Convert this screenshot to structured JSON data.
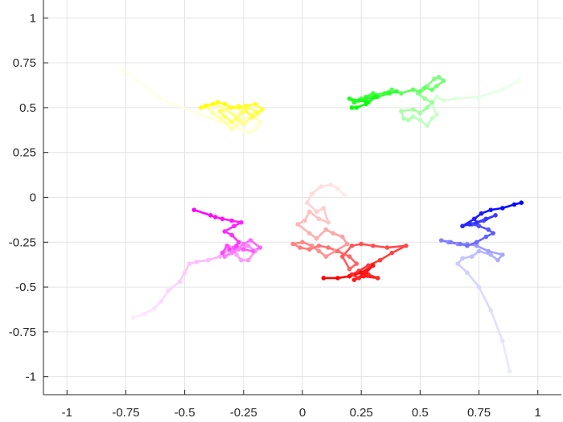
{
  "chart_data": {
    "type": "line",
    "title": "",
    "xlabel": "",
    "ylabel": "",
    "xlim": [
      -1.1,
      1.1
    ],
    "ylim": [
      -1.1,
      1.1
    ],
    "grid": true,
    "box": false,
    "xticks": [
      -1,
      -0.75,
      -0.5,
      -0.25,
      0,
      0.25,
      0.5,
      0.75,
      1
    ],
    "xtick_labels": [
      "-1",
      "-0.75",
      "-0.5",
      "-0.25",
      "0",
      "0.25",
      "0.5",
      "0.75",
      "1"
    ],
    "yticks": [
      -1,
      -0.75,
      -0.5,
      -0.25,
      0,
      0.25,
      0.5,
      0.75,
      1
    ],
    "ytick_labels": [
      "-1",
      "-0.75",
      "-0.5",
      "-0.25",
      "0",
      "0.25",
      "0.5",
      "0.75",
      "1"
    ],
    "series": [
      {
        "color": "#ffff00",
        "x": [
          -0.77,
          -0.6,
          -0.45,
          -0.35,
          -0.3,
          -0.25,
          -0.22,
          -0.2,
          -0.18,
          -0.2,
          -0.25,
          -0.28,
          -0.3,
          -0.32,
          -0.35,
          -0.38,
          -0.4,
          -0.37,
          -0.33,
          -0.29,
          -0.27,
          -0.25,
          -0.22,
          -0.2,
          -0.23,
          -0.26,
          -0.28,
          -0.3,
          -0.33,
          -0.35,
          -0.3,
          -0.27,
          -0.24,
          -0.21,
          -0.19,
          -0.17,
          -0.2,
          -0.24,
          -0.27,
          -0.3,
          -0.33,
          -0.36,
          -0.38,
          -0.41,
          -0.43
        ],
        "y": [
          0.72,
          0.55,
          0.47,
          0.42,
          0.4,
          0.37,
          0.36,
          0.38,
          0.42,
          0.45,
          0.44,
          0.4,
          0.38,
          0.41,
          0.44,
          0.47,
          0.5,
          0.52,
          0.49,
          0.46,
          0.43,
          0.41,
          0.44,
          0.48,
          0.5,
          0.47,
          0.44,
          0.42,
          0.45,
          0.48,
          0.5,
          0.51,
          0.48,
          0.45,
          0.47,
          0.49,
          0.52,
          0.51,
          0.5,
          0.5,
          0.52,
          0.53,
          0.52,
          0.51,
          0.5
        ]
      },
      {
        "color": "#00ff00",
        "x": [
          0.92,
          0.85,
          0.75,
          0.65,
          0.6,
          0.57,
          0.55,
          0.57,
          0.55,
          0.53,
          0.5,
          0.47,
          0.45,
          0.43,
          0.42,
          0.47,
          0.5,
          0.53,
          0.55,
          0.52,
          0.49,
          0.51,
          0.53,
          0.56,
          0.58,
          0.6,
          0.57,
          0.55,
          0.52,
          0.5,
          0.47,
          0.42,
          0.38,
          0.33,
          0.3,
          0.27,
          0.25,
          0.3,
          0.35,
          0.4,
          0.37,
          0.32,
          0.27,
          0.22,
          0.2,
          0.24,
          0.28,
          0.31,
          0.27,
          0.23,
          0.21
        ],
        "y": [
          0.65,
          0.6,
          0.56,
          0.55,
          0.54,
          0.56,
          0.52,
          0.46,
          0.44,
          0.4,
          0.43,
          0.45,
          0.43,
          0.44,
          0.48,
          0.49,
          0.47,
          0.5,
          0.53,
          0.55,
          0.58,
          0.6,
          0.62,
          0.66,
          0.67,
          0.65,
          0.62,
          0.6,
          0.61,
          0.59,
          0.6,
          0.58,
          0.6,
          0.57,
          0.58,
          0.56,
          0.55,
          0.57,
          0.58,
          0.59,
          0.58,
          0.56,
          0.55,
          0.53,
          0.55,
          0.54,
          0.53,
          0.56,
          0.52,
          0.5,
          0.5
        ]
      },
      {
        "color": "#ff0000",
        "x": [
          0.18,
          0.15,
          0.12,
          0.08,
          0.04,
          0.02,
          0.06,
          0.09,
          0.11,
          0.07,
          0.03,
          0.01,
          -0.02,
          0.03,
          0.06,
          0.1,
          0.13,
          0.17,
          0.19,
          0.14,
          0.1,
          0.07,
          0.04,
          0.0,
          -0.04,
          -0.01,
          0.03,
          0.07,
          0.11,
          0.15,
          0.2,
          0.23,
          0.2,
          0.17,
          0.21,
          0.25,
          0.3,
          0.36,
          0.44,
          0.38,
          0.33,
          0.28,
          0.24,
          0.21,
          0.24,
          0.28,
          0.32,
          0.26,
          0.22,
          0.27,
          0.3,
          0.25,
          0.2,
          0.15,
          0.09
        ],
        "y": [
          0.01,
          0.05,
          0.07,
          0.06,
          0.02,
          -0.03,
          -0.08,
          -0.06,
          -0.14,
          -0.12,
          -0.08,
          -0.13,
          -0.15,
          -0.2,
          -0.23,
          -0.18,
          -0.2,
          -0.22,
          -0.26,
          -0.3,
          -0.33,
          -0.3,
          -0.27,
          -0.25,
          -0.26,
          -0.28,
          -0.29,
          -0.27,
          -0.28,
          -0.3,
          -0.33,
          -0.37,
          -0.4,
          -0.33,
          -0.27,
          -0.26,
          -0.27,
          -0.28,
          -0.27,
          -0.31,
          -0.35,
          -0.38,
          -0.41,
          -0.43,
          -0.45,
          -0.43,
          -0.45,
          -0.44,
          -0.46,
          -0.42,
          -0.38,
          -0.42,
          -0.44,
          -0.45,
          -0.45
        ]
      },
      {
        "color": "#ff00ff",
        "x": [
          -0.72,
          -0.67,
          -0.63,
          -0.6,
          -0.57,
          -0.52,
          -0.5,
          -0.48,
          -0.45,
          -0.4,
          -0.35,
          -0.32,
          -0.3,
          -0.28,
          -0.26,
          -0.23,
          -0.2,
          -0.23,
          -0.27,
          -0.3,
          -0.33,
          -0.29,
          -0.25,
          -0.22,
          -0.18,
          -0.21,
          -0.25,
          -0.29,
          -0.32,
          -0.34,
          -0.31,
          -0.28,
          -0.27,
          -0.3,
          -0.33,
          -0.29,
          -0.26,
          -0.3,
          -0.34,
          -0.37,
          -0.39,
          -0.46
        ],
        "y": [
          -0.67,
          -0.65,
          -0.62,
          -0.58,
          -0.52,
          -0.47,
          -0.42,
          -0.37,
          -0.36,
          -0.35,
          -0.33,
          -0.3,
          -0.28,
          -0.32,
          -0.35,
          -0.35,
          -0.3,
          -0.27,
          -0.29,
          -0.31,
          -0.33,
          -0.3,
          -0.26,
          -0.24,
          -0.28,
          -0.3,
          -0.29,
          -0.28,
          -0.27,
          -0.31,
          -0.29,
          -0.27,
          -0.25,
          -0.21,
          -0.19,
          -0.16,
          -0.14,
          -0.13,
          -0.12,
          -0.11,
          -0.1,
          -0.07
        ]
      },
      {
        "color": "#0000ff",
        "x": [
          0.88,
          0.85,
          0.8,
          0.75,
          0.7,
          0.66,
          0.68,
          0.72,
          0.75,
          0.8,
          0.83,
          0.85,
          0.79,
          0.74,
          0.7,
          0.66,
          0.62,
          0.59,
          0.63,
          0.67,
          0.7,
          0.74,
          0.78,
          0.81,
          0.79,
          0.75,
          0.72,
          0.77,
          0.82,
          0.78,
          0.74,
          0.71,
          0.68,
          0.73,
          0.76,
          0.8,
          0.85,
          0.9,
          0.93
        ],
        "y": [
          -0.97,
          -0.8,
          -0.63,
          -0.5,
          -0.42,
          -0.37,
          -0.34,
          -0.33,
          -0.3,
          -0.32,
          -0.35,
          -0.32,
          -0.3,
          -0.27,
          -0.26,
          -0.26,
          -0.25,
          -0.24,
          -0.25,
          -0.26,
          -0.27,
          -0.25,
          -0.22,
          -0.2,
          -0.18,
          -0.16,
          -0.15,
          -0.13,
          -0.1,
          -0.12,
          -0.14,
          -0.15,
          -0.16,
          -0.12,
          -0.09,
          -0.07,
          -0.06,
          -0.04,
          -0.03
        ]
      }
    ]
  }
}
